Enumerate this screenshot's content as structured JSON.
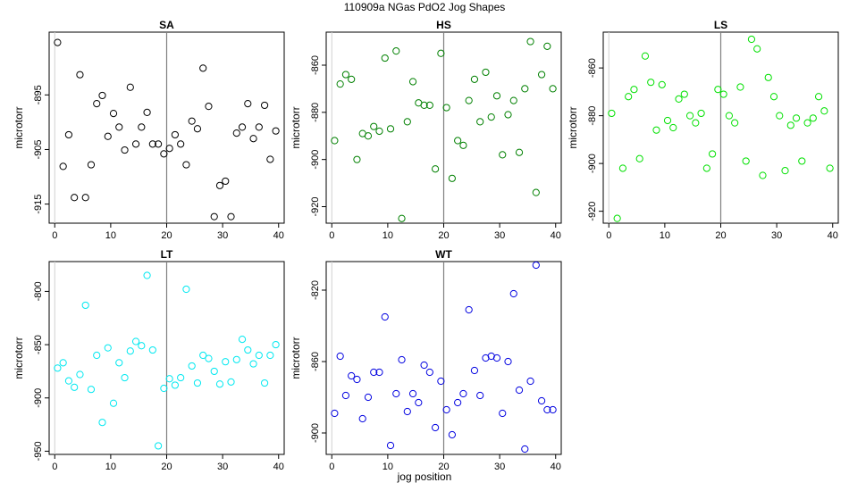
{
  "figure": {
    "title": "110909a   NGas PdO2 Jog Shapes",
    "xlabel": "jog position"
  },
  "chart_data": [
    {
      "type": "scatter",
      "title": "SA",
      "ylabel": "microtorr",
      "color": "#000000",
      "xlim": [
        -1,
        41
      ],
      "ylim": [
        -918.5,
        -883.5
      ],
      "xticks": [
        0,
        10,
        20,
        30,
        40
      ],
      "yticks": [
        -895,
        -905,
        -915
      ],
      "vline": 20,
      "x": [
        0.5,
        1.5,
        2.5,
        3.5,
        4.5,
        5.5,
        6.5,
        7.5,
        8.5,
        9.5,
        10.5,
        11.5,
        12.5,
        13.5,
        14.5,
        15.5,
        16.5,
        17.5,
        18.5,
        19.5,
        20.5,
        21.5,
        22.5,
        23.5,
        24.5,
        25.5,
        26.5,
        27.5,
        28.5,
        29.5,
        30.5,
        31.5,
        32.5,
        33.5,
        34.5,
        35.5,
        36.5,
        37.5,
        38.5,
        39.5
      ],
      "y": [
        -885.4,
        -908.1,
        -902.3,
        -913.8,
        -891.3,
        -913.8,
        -907.8,
        -896.6,
        -895.1,
        -902.6,
        -898.4,
        -900.9,
        -905.1,
        -893.6,
        -904.0,
        -900.9,
        -898.2,
        -904.0,
        -904.0,
        -905.8,
        -904.8,
        -902.3,
        -904.0,
        -907.8,
        -899.8,
        -901.2,
        -890.1,
        -897.1,
        -917.3,
        -911.6,
        -910.8,
        -917.3,
        -902.0,
        -900.9,
        -896.6,
        -903.0,
        -900.9,
        -896.9,
        -906.8,
        -901.6
      ]
    },
    {
      "type": "scatter",
      "title": "HS",
      "ylabel": "microtorr",
      "color": "#008000",
      "xlim": [
        -1,
        41
      ],
      "ylim": [
        -927,
        -846
      ],
      "xticks": [
        0,
        10,
        20,
        30,
        40
      ],
      "yticks": [
        -860,
        -880,
        -900,
        -920
      ],
      "vline": 20,
      "x": [
        0.5,
        1.5,
        2.5,
        3.5,
        4.5,
        5.5,
        6.5,
        7.5,
        8.5,
        9.5,
        10.5,
        11.5,
        12.5,
        13.5,
        14.5,
        15.5,
        16.5,
        17.5,
        18.5,
        19.5,
        20.5,
        21.5,
        22.5,
        23.5,
        24.5,
        25.5,
        26.5,
        27.5,
        28.5,
        29.5,
        30.5,
        31.5,
        32.5,
        33.5,
        34.5,
        35.5,
        36.5,
        37.5,
        38.5,
        39.5
      ],
      "y": [
        -892.0,
        -868.0,
        -864.0,
        -866.0,
        -900.0,
        -889.0,
        -890.0,
        -886.0,
        -888.0,
        -857.0,
        -887.0,
        -854.0,
        -925.0,
        -884.0,
        -867.0,
        -876.0,
        -877.0,
        -877.0,
        -904.0,
        -855.0,
        -878.0,
        -908.0,
        -892.0,
        -894.0,
        -875.0,
        -866.0,
        -884.0,
        -863.0,
        -882.0,
        -873.0,
        -898.0,
        -881.0,
        -875.0,
        -897.0,
        -870.0,
        -850.0,
        -914.0,
        -864.0,
        -852.0,
        -870.0
      ]
    },
    {
      "type": "scatter",
      "title": "LS",
      "ylabel": "microtorr",
      "color": "#00e000",
      "xlim": [
        -1,
        41
      ],
      "ylim": [
        -925,
        -845
      ],
      "xticks": [
        0,
        10,
        20,
        30,
        40
      ],
      "yticks": [
        -860,
        -880,
        -900,
        -920
      ],
      "vline": 20,
      "x": [
        0.5,
        1.5,
        2.5,
        3.5,
        4.5,
        5.5,
        6.5,
        7.5,
        8.5,
        9.5,
        10.5,
        11.5,
        12.5,
        13.5,
        14.5,
        15.5,
        16.5,
        17.5,
        18.5,
        19.5,
        20.5,
        21.5,
        22.5,
        23.5,
        24.5,
        25.5,
        26.5,
        27.5,
        28.5,
        29.5,
        30.5,
        31.5,
        32.5,
        33.5,
        34.5,
        35.5,
        36.5,
        37.5,
        38.5,
        39.5
      ],
      "y": [
        -879.0,
        -923.0,
        -902.0,
        -872.0,
        -869.0,
        -898.0,
        -855.0,
        -866.0,
        -886.0,
        -867.0,
        -882.0,
        -885.0,
        -873.0,
        -871.0,
        -880.0,
        -883.0,
        -879.0,
        -902.0,
        -896.0,
        -869.0,
        -871.0,
        -880.0,
        -883.0,
        -868.0,
        -899.0,
        -848.0,
        -852.0,
        -905.0,
        -864.0,
        -872.0,
        -880.0,
        -903.0,
        -884.0,
        -881.0,
        -899.0,
        -883.0,
        -881.0,
        -872.0,
        -878.0,
        -902.0
      ]
    },
    {
      "type": "scatter",
      "title": "LT",
      "ylabel": "microtorr",
      "color": "#00e8f0",
      "xlim": [
        -1,
        41
      ],
      "ylim": [
        -953,
        -772
      ],
      "xticks": [
        0,
        10,
        20,
        30,
        40
      ],
      "yticks": [
        -800,
        -850,
        -900,
        -950
      ],
      "vline": 20,
      "x": [
        0.5,
        1.5,
        2.5,
        3.5,
        4.5,
        5.5,
        6.5,
        7.5,
        8.5,
        9.5,
        10.5,
        11.5,
        12.5,
        13.5,
        14.5,
        15.5,
        16.5,
        17.5,
        18.5,
        19.5,
        20.5,
        21.5,
        22.5,
        23.5,
        24.5,
        25.5,
        26.5,
        27.5,
        28.5,
        29.5,
        30.5,
        31.5,
        32.5,
        33.5,
        34.5,
        35.5,
        36.5,
        37.5,
        38.5,
        39.5
      ],
      "y": [
        -872.0,
        -867.0,
        -884.0,
        -890.0,
        -878.0,
        -813.0,
        -892.0,
        -860.0,
        -923.0,
        -853.0,
        -905.0,
        -867.0,
        -881.0,
        -856.0,
        -847.0,
        -851.0,
        -785.0,
        -855.0,
        -945.0,
        -891.0,
        -882.0,
        -888.0,
        -881.0,
        -798.0,
        -870.0,
        -886.0,
        -860.0,
        -863.0,
        -875.0,
        -887.0,
        -866.0,
        -885.0,
        -864.0,
        -845.0,
        -855.0,
        -868.0,
        -860.0,
        -886.0,
        -860.0,
        -850.0
      ]
    },
    {
      "type": "scatter",
      "title": "WT",
      "ylabel": "microtorr",
      "color": "#0000e0",
      "xlim": [
        -1,
        41
      ],
      "ylim": [
        -912,
        -804
      ],
      "xticks": [
        0,
        10,
        20,
        30,
        40
      ],
      "yticks": [
        -820,
        -860,
        -900
      ],
      "vline": 20,
      "x": [
        0.5,
        1.5,
        2.5,
        3.5,
        4.5,
        5.5,
        6.5,
        7.5,
        8.5,
        9.5,
        10.5,
        11.5,
        12.5,
        13.5,
        14.5,
        15.5,
        16.5,
        17.5,
        18.5,
        19.5,
        20.5,
        21.5,
        22.5,
        23.5,
        24.5,
        25.5,
        26.5,
        27.5,
        28.5,
        29.5,
        30.5,
        31.5,
        32.5,
        33.5,
        34.5,
        35.5,
        36.5,
        37.5,
        38.5,
        39.5
      ],
      "y": [
        -889.0,
        -857.0,
        -879.0,
        -868.0,
        -870.0,
        -892.0,
        -880.0,
        -866.0,
        -866.0,
        -835.0,
        -907.0,
        -878.0,
        -859.0,
        -888.0,
        -878.0,
        -883.0,
        -862.0,
        -866.0,
        -897.0,
        -871.0,
        -887.0,
        -901.0,
        -883.0,
        -878.0,
        -831.0,
        -865.0,
        -879.0,
        -858.0,
        -857.0,
        -858.0,
        -889.0,
        -860.0,
        -822.0,
        -876.0,
        -909.0,
        -871.0,
        -806.0,
        -882.0,
        -887.0,
        -887.0
      ]
    }
  ]
}
